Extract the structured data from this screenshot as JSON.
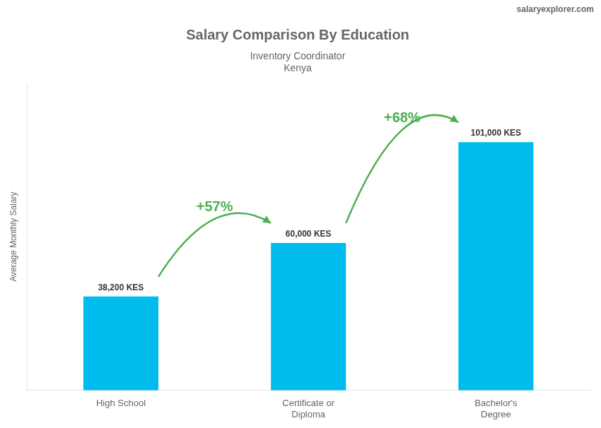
{
  "chart_data": {
    "type": "bar",
    "title": "Salary Comparison By Education",
    "subtitle": [
      "Inventory Coordinator",
      "Kenya"
    ],
    "categories": [
      "High School",
      "Certificate or\nDiploma",
      "Bachelor's\nDegree"
    ],
    "values": [
      38200,
      60000,
      101000
    ],
    "value_labels": [
      "38,200 KES",
      "60,000 KES",
      "101,000 KES"
    ],
    "data_labels": true,
    "color": "#00bbee",
    "ylabel": "Average Monthly Salary",
    "ylim": [
      0,
      125000
    ],
    "tick_labels": "x",
    "grid": false,
    "annotations": [
      {
        "text": "+57%",
        "between": [
          "High School",
          "Certificate or\nDiploma"
        ]
      },
      {
        "text": "+68%",
        "between": [
          "Certificate or\nDiploma",
          "Bachelor's\nDegree"
        ]
      },
      {
        "text": "salaryexplorer.com"
      }
    ]
  }
}
